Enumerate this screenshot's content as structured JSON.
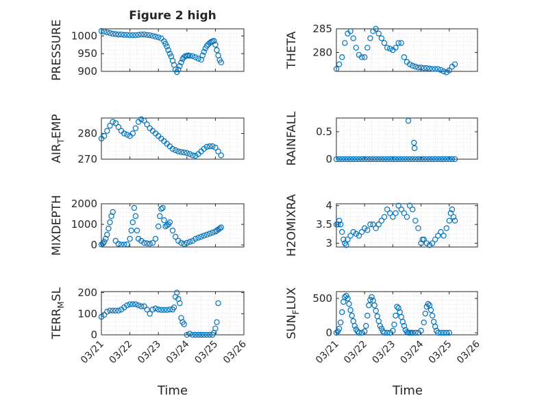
{
  "figure_title": "Figure 2 high",
  "xlabel": "Time",
  "xtick_labels": [
    "03/21",
    "03/22",
    "03/23",
    "03/24",
    "03/25",
    "03/26"
  ],
  "colors": {
    "marker": "#0072BD",
    "axis": "#262626",
    "grid": "#cfcfcf"
  },
  "chart_data": [
    {
      "type": "scatter",
      "ylabel": "PRESSURE",
      "ylim": [
        900,
        1020
      ],
      "yticks": [
        900,
        950,
        1000
      ],
      "ytick_labels": [
        "900",
        "950",
        "1000"
      ],
      "x": [
        0,
        0.1,
        0.2,
        0.3,
        0.4,
        0.5,
        0.6,
        0.7,
        0.8,
        0.9,
        1.0,
        1.1,
        1.2,
        1.3,
        1.4,
        1.5,
        1.6,
        1.7,
        1.8,
        1.9,
        2.0,
        2.1,
        2.2,
        2.25,
        2.3,
        2.35,
        2.4,
        2.45,
        2.5,
        2.55,
        2.6,
        2.65,
        2.7,
        2.75,
        2.8,
        2.85,
        2.9,
        2.95,
        3.0,
        3.05,
        3.1,
        3.2,
        3.3,
        3.4,
        3.5,
        3.55,
        3.6,
        3.65,
        3.7,
        3.75,
        3.8,
        3.85,
        3.9,
        3.95,
        4.0,
        4.05,
        4.1,
        4.15,
        4.2
      ],
      "y": [
        1014,
        1012,
        1010,
        1008,
        1006,
        1005,
        1004,
        1004,
        1003,
        1003,
        1002,
        1002,
        1002,
        1003,
        1004,
        1004,
        1003,
        1002,
        1000,
        998,
        996,
        993,
        985,
        978,
        970,
        960,
        950,
        942,
        930,
        918,
        905,
        898,
        905,
        915,
        925,
        935,
        940,
        943,
        944,
        945,
        944,
        943,
        940,
        936,
        933,
        945,
        955,
        965,
        972,
        976,
        980,
        983,
        985,
        986,
        975,
        960,
        945,
        932,
        925
      ]
    },
    {
      "type": "scatter",
      "ylabel": "THETA",
      "ylim": [
        276,
        285
      ],
      "yticks": [
        280,
        285
      ],
      "ytick_labels": [
        "280",
        "285"
      ],
      "x": [
        0,
        0.1,
        0.2,
        0.3,
        0.4,
        0.5,
        0.6,
        0.7,
        0.8,
        0.9,
        1.0,
        1.1,
        1.2,
        1.3,
        1.4,
        1.5,
        1.6,
        1.7,
        1.8,
        1.9,
        2.0,
        2.1,
        2.2,
        2.3,
        2.4,
        2.5,
        2.6,
        2.7,
        2.8,
        2.9,
        3.0,
        3.1,
        3.2,
        3.3,
        3.4,
        3.5,
        3.6,
        3.7,
        3.8,
        3.9,
        4.0,
        4.1,
        4.2
      ],
      "y": [
        276.5,
        277.5,
        279,
        282,
        284,
        284.5,
        283,
        281,
        279.5,
        279,
        279,
        281,
        283,
        284.5,
        285,
        284,
        283,
        282,
        281,
        280.8,
        280.5,
        281,
        282,
        282,
        279,
        278,
        277.5,
        277.2,
        277,
        276.8,
        276.8,
        276.7,
        276.7,
        276.6,
        276.5,
        276.5,
        276.5,
        276.3,
        276,
        275.8,
        276.2,
        277,
        277.5
      ]
    },
    {
      "type": "scatter",
      "ylabel": "AIR_TEMP",
      "ylim": [
        270,
        286
      ],
      "yticks": [
        270,
        280
      ],
      "ytick_labels": [
        "270",
        "280"
      ],
      "x": [
        0,
        0.1,
        0.2,
        0.3,
        0.4,
        0.5,
        0.6,
        0.7,
        0.8,
        0.9,
        1.0,
        1.1,
        1.2,
        1.3,
        1.4,
        1.5,
        1.6,
        1.7,
        1.8,
        1.9,
        2.0,
        2.1,
        2.2,
        2.3,
        2.4,
        2.5,
        2.6,
        2.7,
        2.8,
        2.9,
        3.0,
        3.1,
        3.2,
        3.3,
        3.4,
        3.5,
        3.6,
        3.7,
        3.8,
        3.9,
        4.0,
        4.1,
        4.2
      ],
      "y": [
        278,
        279,
        281,
        283,
        284.5,
        284,
        282.5,
        281,
        280,
        279.5,
        279,
        280,
        282,
        284.5,
        285.5,
        285,
        283.5,
        282,
        281,
        280,
        279,
        278,
        277,
        276,
        275,
        274,
        273.5,
        273,
        272.8,
        272.6,
        272.4,
        272,
        271.5,
        271.3,
        272,
        273,
        274,
        274.8,
        275,
        275,
        274.5,
        273,
        271.5
      ]
    },
    {
      "type": "scatter",
      "ylabel": "RAINFALL",
      "ylim": [
        0,
        0.75
      ],
      "yticks": [
        0,
        0.5
      ],
      "ytick_labels": [
        "0",
        "0.5"
      ],
      "x": [
        0,
        0.1,
        0.2,
        0.3,
        0.4,
        0.5,
        0.6,
        0.7,
        0.8,
        0.9,
        1.0,
        1.1,
        1.2,
        1.3,
        1.4,
        1.5,
        1.6,
        1.7,
        1.8,
        1.9,
        2.0,
        2.1,
        2.2,
        2.3,
        2.4,
        2.5,
        2.55,
        2.6,
        2.7,
        2.75,
        2.77,
        2.8,
        2.9,
        3.0,
        3.1,
        3.2,
        3.3,
        3.4,
        3.5,
        3.6,
        3.7,
        3.8,
        3.9,
        4.0,
        4.1,
        4.2
      ],
      "y": [
        0,
        0,
        0,
        0,
        0,
        0,
        0,
        0,
        0,
        0,
        0,
        0,
        0,
        0,
        0,
        0,
        0,
        0,
        0,
        0,
        0,
        0,
        0,
        0,
        0,
        0,
        0.7,
        0,
        0,
        0.3,
        0.2,
        0,
        0,
        0,
        0,
        0,
        0,
        0,
        0,
        0,
        0,
        0,
        0,
        0,
        0,
        0
      ]
    },
    {
      "type": "scatter",
      "ylabel": "MIXDEPTH",
      "ylim": [
        -100,
        2000
      ],
      "yticks": [
        0,
        1000,
        2000
      ],
      "ytick_labels": [
        "0",
        "1000",
        "2000"
      ],
      "x": [
        0,
        0.05,
        0.1,
        0.15,
        0.2,
        0.25,
        0.3,
        0.35,
        0.4,
        0.5,
        0.6,
        0.7,
        0.8,
        0.9,
        1.0,
        1.05,
        1.1,
        1.15,
        1.2,
        1.25,
        1.3,
        1.4,
        1.5,
        1.6,
        1.7,
        1.8,
        1.9,
        2.0,
        2.05,
        2.1,
        2.15,
        2.2,
        2.25,
        2.3,
        2.35,
        2.4,
        2.5,
        2.6,
        2.7,
        2.8,
        2.9,
        3.0,
        3.1,
        3.2,
        3.3,
        3.4,
        3.5,
        3.6,
        3.7,
        3.8,
        3.9,
        4.0,
        4.05,
        4.1,
        4.15,
        4.2
      ],
      "y": [
        20,
        60,
        150,
        300,
        500,
        800,
        1100,
        1400,
        1600,
        200,
        50,
        20,
        20,
        30,
        300,
        700,
        1100,
        1800,
        1400,
        700,
        300,
        200,
        100,
        80,
        60,
        100,
        300,
        900,
        1400,
        1750,
        1800,
        1200,
        900,
        950,
        1000,
        1100,
        700,
        400,
        200,
        100,
        50,
        100,
        150,
        200,
        300,
        350,
        400,
        450,
        500,
        550,
        600,
        650,
        700,
        750,
        800,
        850
      ]
    },
    {
      "type": "scatter",
      "ylabel": "H2OMIXRA",
      "ylim": [
        2.9,
        4.05
      ],
      "yticks": [
        3,
        3.5,
        4
      ],
      "ytick_labels": [
        "3",
        "3.5",
        "4"
      ],
      "x": [
        0,
        0.05,
        0.1,
        0.15,
        0.2,
        0.25,
        0.3,
        0.35,
        0.4,
        0.5,
        0.6,
        0.7,
        0.8,
        0.9,
        1.0,
        1.1,
        1.2,
        1.3,
        1.4,
        1.5,
        1.6,
        1.7,
        1.8,
        1.9,
        2.0,
        2.1,
        2.2,
        2.3,
        2.4,
        2.5,
        2.6,
        2.7,
        2.8,
        2.9,
        3.0,
        3.05,
        3.1,
        3.2,
        3.3,
        3.4,
        3.5,
        3.6,
        3.7,
        3.8,
        3.9,
        4.0,
        4.05,
        4.1,
        4.15,
        4.2
      ],
      "y": [
        3.5,
        3.5,
        3.6,
        3.5,
        3.3,
        3.1,
        3.0,
        2.95,
        3.1,
        3.2,
        3.3,
        3.25,
        3.2,
        3.3,
        3.4,
        3.35,
        3.5,
        3.5,
        3.4,
        3.5,
        3.6,
        3.7,
        3.9,
        3.8,
        3.7,
        3.8,
        4.0,
        3.9,
        3.8,
        3.7,
        4.0,
        3.9,
        3.6,
        3.4,
        3.0,
        3.1,
        3.1,
        3.0,
        2.95,
        3.0,
        3.1,
        3.2,
        3.3,
        3.2,
        3.4,
        3.6,
        3.8,
        3.9,
        3.7,
        3.6
      ]
    },
    {
      "type": "scatter",
      "ylabel": "TERR_MSL",
      "ylim": [
        0,
        205
      ],
      "yticks": [
        0,
        100,
        200
      ],
      "ytick_labels": [
        "0",
        "100",
        "200"
      ],
      "x": [
        0,
        0.1,
        0.2,
        0.3,
        0.4,
        0.5,
        0.6,
        0.7,
        0.8,
        0.9,
        1.0,
        1.1,
        1.2,
        1.3,
        1.4,
        1.5,
        1.6,
        1.7,
        1.8,
        1.9,
        2.0,
        2.1,
        2.2,
        2.3,
        2.4,
        2.5,
        2.55,
        2.6,
        2.65,
        2.7,
        2.75,
        2.8,
        2.85,
        2.9,
        3.0,
        3.1,
        3.2,
        3.3,
        3.4,
        3.5,
        3.6,
        3.7,
        3.8,
        3.9,
        3.95,
        4.0,
        4.05,
        4.1
      ],
      "y": [
        85,
        95,
        110,
        115,
        115,
        115,
        115,
        120,
        130,
        140,
        145,
        145,
        145,
        140,
        135,
        135,
        120,
        100,
        120,
        125,
        120,
        118,
        118,
        118,
        120,
        120,
        130,
        180,
        200,
        170,
        150,
        80,
        60,
        50,
        0,
        5,
        0,
        0,
        0,
        0,
        0,
        0,
        0,
        0,
        10,
        30,
        60,
        150
      ]
    },
    {
      "type": "scatter",
      "ylabel": "SUN_FLUX",
      "ylim": [
        -30,
        600
      ],
      "yticks": [
        0,
        500
      ],
      "ytick_labels": [
        "0",
        "500"
      ],
      "x": [
        0,
        0.05,
        0.1,
        0.15,
        0.2,
        0.25,
        0.3,
        0.35,
        0.4,
        0.45,
        0.5,
        0.55,
        0.6,
        0.65,
        0.7,
        0.75,
        0.8,
        0.9,
        1.0,
        1.05,
        1.1,
        1.15,
        1.2,
        1.25,
        1.3,
        1.35,
        1.4,
        1.45,
        1.5,
        1.55,
        1.6,
        1.65,
        1.7,
        1.8,
        1.9,
        2.0,
        2.05,
        2.1,
        2.15,
        2.2,
        2.25,
        2.3,
        2.35,
        2.4,
        2.45,
        2.5,
        2.55,
        2.6,
        2.65,
        2.7,
        2.8,
        2.9,
        3.0,
        3.1,
        3.15,
        3.2,
        3.25,
        3.3,
        3.35,
        3.4,
        3.45,
        3.5,
        3.55,
        3.6,
        3.7,
        3.8,
        3.9,
        4.0
      ],
      "y": [
        0,
        20,
        60,
        150,
        300,
        450,
        520,
        540,
        500,
        420,
        330,
        250,
        170,
        100,
        50,
        20,
        0,
        0,
        20,
        100,
        250,
        400,
        480,
        520,
        470,
        400,
        320,
        240,
        170,
        100,
        60,
        20,
        0,
        0,
        0,
        30,
        120,
        250,
        380,
        360,
        300,
        230,
        160,
        100,
        40,
        10,
        0,
        0,
        0,
        0,
        0,
        0,
        30,
        150,
        280,
        380,
        420,
        400,
        330,
        250,
        160,
        90,
        30,
        0,
        0,
        0,
        0,
        0
      ]
    }
  ]
}
